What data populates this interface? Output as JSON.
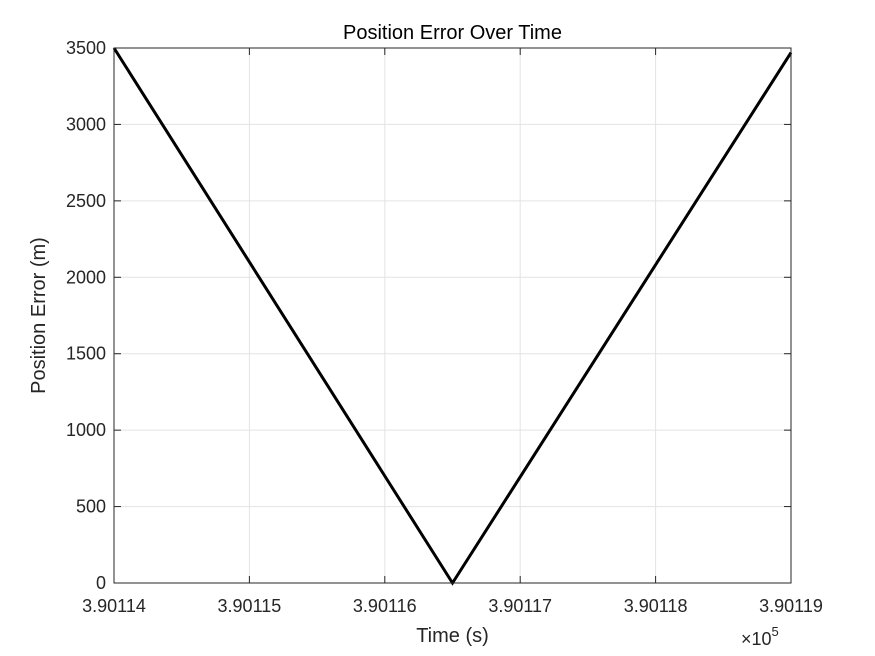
{
  "chart_data": {
    "type": "line",
    "title": "Position Error Over Time",
    "xlabel": "Time (s)",
    "ylabel": "Position Error (m)",
    "x_exponent_multiplier": "×10",
    "x_exponent_power": "5",
    "xlim": [
      3.90114,
      3.90119
    ],
    "ylim": [
      0,
      3500
    ],
    "x_ticks": [
      3.90114,
      3.90115,
      3.90116,
      3.90117,
      3.90118,
      3.90119
    ],
    "x_tick_labels": [
      "3.90114",
      "3.90115",
      "3.90116",
      "3.90117",
      "3.90118",
      "3.90119"
    ],
    "y_ticks": [
      0,
      500,
      1000,
      1500,
      2000,
      2500,
      3000,
      3500
    ],
    "y_tick_labels": [
      "0",
      "500",
      "1000",
      "1500",
      "2000",
      "2500",
      "3000",
      "3500"
    ],
    "grid": true,
    "series": [
      {
        "x": [
          3.90114,
          3.901165,
          3.90119
        ],
        "y": [
          3500,
          0,
          3470
        ]
      }
    ],
    "colors": {
      "line": "#000000",
      "grid": "#e3e3e3",
      "axes": "#262626"
    }
  }
}
